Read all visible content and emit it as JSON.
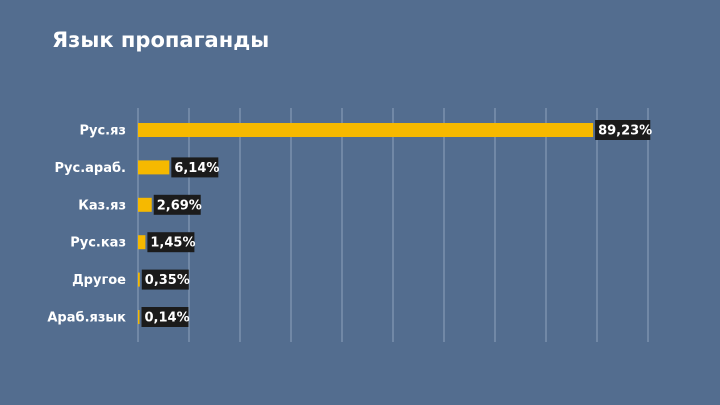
{
  "title": "Язык пропаганды",
  "chart_data": {
    "type": "bar",
    "orientation": "horizontal",
    "title": "Язык пропаганды",
    "categories": [
      "Рус.яз",
      "Рус.араб.",
      "Каз.яз",
      "Рус.каз",
      "Другое",
      "Араб.язык"
    ],
    "values": [
      89.23,
      6.14,
      2.69,
      1.45,
      0.35,
      0.14
    ],
    "data_labels": [
      "89,23%",
      "6,14%",
      "2,69%",
      "1,45%",
      "0,35%",
      "0,14%"
    ],
    "xlim": [
      0,
      100
    ],
    "grid": true,
    "legend": "none",
    "colors": {
      "bar": "#f6b900",
      "background": "#536d8f",
      "label_box": "#1b1b1b"
    }
  }
}
